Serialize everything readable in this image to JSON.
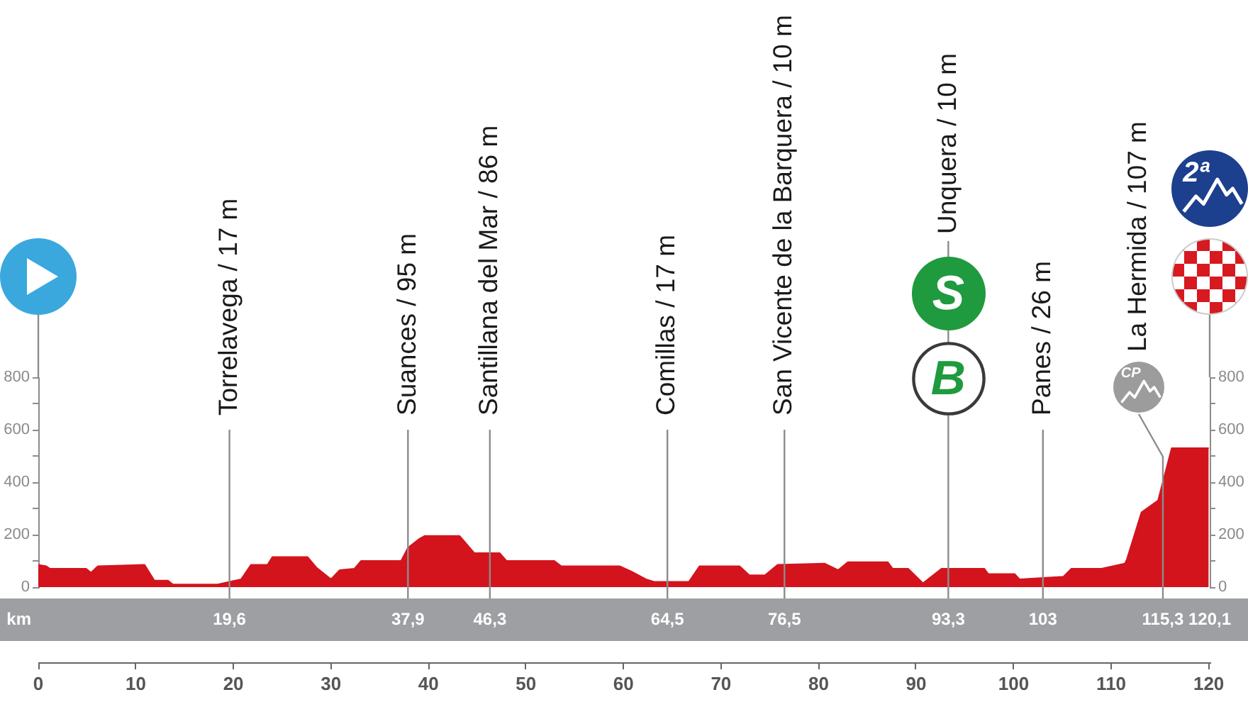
{
  "chart_data": {
    "type": "area",
    "x": [
      0,
      0.8,
      1.2,
      4.9,
      5.4,
      6.1,
      10.9,
      11.9,
      13.3,
      13.8,
      18.4,
      19.6,
      20.8,
      21.8,
      23.5,
      24,
      27.6,
      28.5,
      30,
      30.9,
      32.4,
      33.1,
      37.2,
      37.9,
      39.1,
      39.6,
      43.2,
      44.7,
      47.3,
      48,
      52.9,
      53.6,
      59.6,
      60.8,
      62.3,
      63.2,
      66.7,
      67.8,
      71.9,
      72.9,
      74.5,
      75.8,
      80.6,
      82,
      83,
      87.1,
      87.6,
      89.2,
      90.7,
      92.6,
      97,
      97.4,
      100.1,
      100.6,
      105.1,
      105.9,
      109,
      111.4,
      111.6,
      113.1,
      114.8,
      116.2,
      120
    ],
    "series": [
      {
        "color": "#d3141d",
        "values": [
          85,
          80,
          70,
          70,
          55,
          80,
          85,
          25,
          25,
          10,
          10,
          20,
          30,
          85,
          85,
          115,
          115,
          75,
          30,
          65,
          70,
          100,
          100,
          150,
          185,
          195,
          195,
          130,
          130,
          100,
          100,
          80,
          80,
          60,
          30,
          20,
          20,
          80,
          80,
          45,
          45,
          85,
          90,
          65,
          95,
          95,
          70,
          70,
          15,
          70,
          70,
          50,
          50,
          30,
          40,
          70,
          70,
          90,
          105,
          285,
          330,
          530,
          530
        ]
      }
    ],
    "xlim": [
      0,
      120.1
    ],
    "xticks": [
      0,
      10,
      20,
      30,
      40,
      50,
      60,
      70,
      80,
      90,
      100,
      110,
      120
    ],
    "ylim": [
      0,
      800
    ],
    "yticks": [
      0,
      {
        "value": 100,
        "label": null
      },
      200,
      {
        "value": 300,
        "label": null
      },
      400,
      {
        "value": 500,
        "label": null
      },
      600,
      {
        "value": 700,
        "label": null
      },
      800
    ],
    "y2lim": [
      0,
      800
    ],
    "y2ticks": [
      0,
      {
        "value": 100,
        "label": null
      },
      200,
      {
        "value": 300,
        "label": null
      },
      400,
      {
        "value": 500,
        "label": null
      },
      600,
      {
        "value": 700,
        "label": null
      },
      800
    ],
    "x2lim": [
      0,
      120.1
    ],
    "x2label": "km",
    "x2ticks": [
      {
        "value": 19.6,
        "label": "19,6"
      },
      {
        "value": 37.9,
        "label": "37,9"
      },
      {
        "value": 46.3,
        "label": "46,3"
      },
      {
        "value": 64.5,
        "label": "64,5"
      },
      {
        "value": 76.5,
        "label": "76,5"
      },
      {
        "value": 93.3,
        "label": "93,3"
      },
      103,
      {
        "value": 115.3,
        "label": "115,3"
      },
      {
        "value": 120.1,
        "label": "120,1"
      }
    ],
    "ref_lines": [
      {
        "axis": "x",
        "value": 19.6,
        "label": "Torrelavega / 17 m"
      },
      {
        "axis": "x",
        "value": 37.9,
        "label": "Suances / 95 m"
      },
      {
        "axis": "x",
        "value": 46.3,
        "label": "Santillana del Mar / 86 m"
      },
      {
        "axis": "x",
        "value": 64.5,
        "label": "Comillas / 17 m"
      },
      {
        "axis": "x",
        "value": 76.5,
        "label": "San Vicente de la Barquera / 10 m"
      },
      {
        "axis": "x",
        "value": 93.3,
        "label": "Unquera / 10 m"
      },
      {
        "axis": "x",
        "value": 103,
        "label": "Panes / 26 m"
      },
      {
        "axis": "x",
        "value": 115.3,
        "label": "La Hermida / 107 m"
      }
    ],
    "annotations": [
      "S",
      "B",
      "CP",
      "2ª"
    ]
  }
}
